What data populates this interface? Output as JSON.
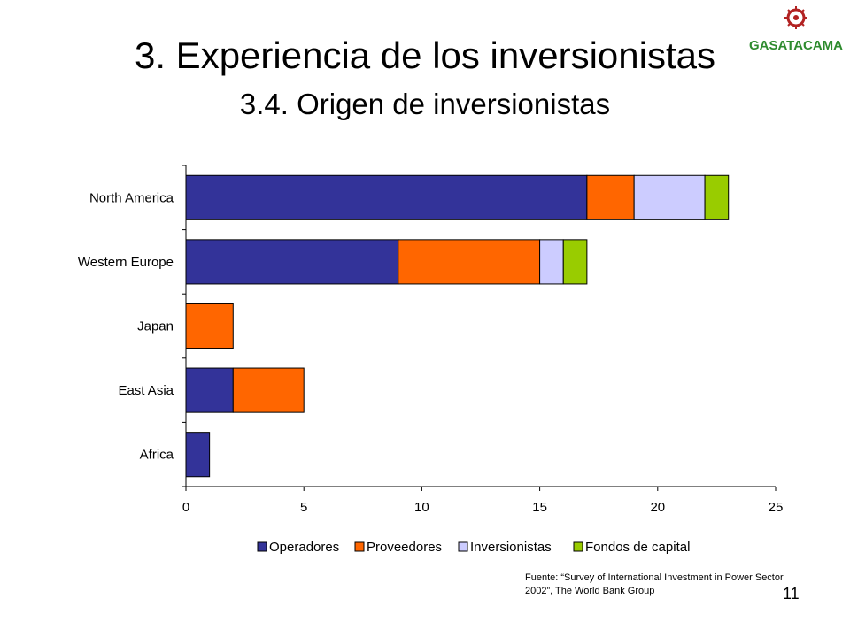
{
  "slide": {
    "title": "3. Experiencia de los inversionistas",
    "subtitle": "3.4. Origen de inversionistas",
    "source_note": "Fuente: “Survey of International Investment in Power Sector 2002”, The World Bank Group",
    "page_number": "11",
    "logo": {
      "text": "GASATACAMA",
      "color": "#2e8b2e",
      "emblem_color": "#b22222",
      "icon": "sun-emblem-icon"
    }
  },
  "chart_data": {
    "type": "bar",
    "orientation": "horizontal",
    "stacked": true,
    "title": "",
    "xlabel": "",
    "ylabel": "",
    "categories": [
      "North America",
      "Western Europe",
      "Japan",
      "East Asia",
      "Africa"
    ],
    "series": [
      {
        "name": "Operadores",
        "color": "#333399",
        "values": [
          17,
          9,
          0,
          2,
          1
        ]
      },
      {
        "name": "Proveedores",
        "color": "#ff6600",
        "values": [
          2,
          6,
          2,
          3,
          0
        ]
      },
      {
        "name": "Inversionistas",
        "color": "#ccccff",
        "values": [
          3,
          1,
          0,
          0,
          0
        ]
      },
      {
        "name": "Fondos de capital",
        "color": "#99cc00",
        "values": [
          1,
          1,
          0,
          0,
          0
        ]
      }
    ],
    "xlim": [
      0,
      25
    ],
    "xticks": [
      "0",
      "5",
      "10",
      "15",
      "20",
      "25"
    ],
    "grid": false,
    "legend_position": "bottom"
  }
}
